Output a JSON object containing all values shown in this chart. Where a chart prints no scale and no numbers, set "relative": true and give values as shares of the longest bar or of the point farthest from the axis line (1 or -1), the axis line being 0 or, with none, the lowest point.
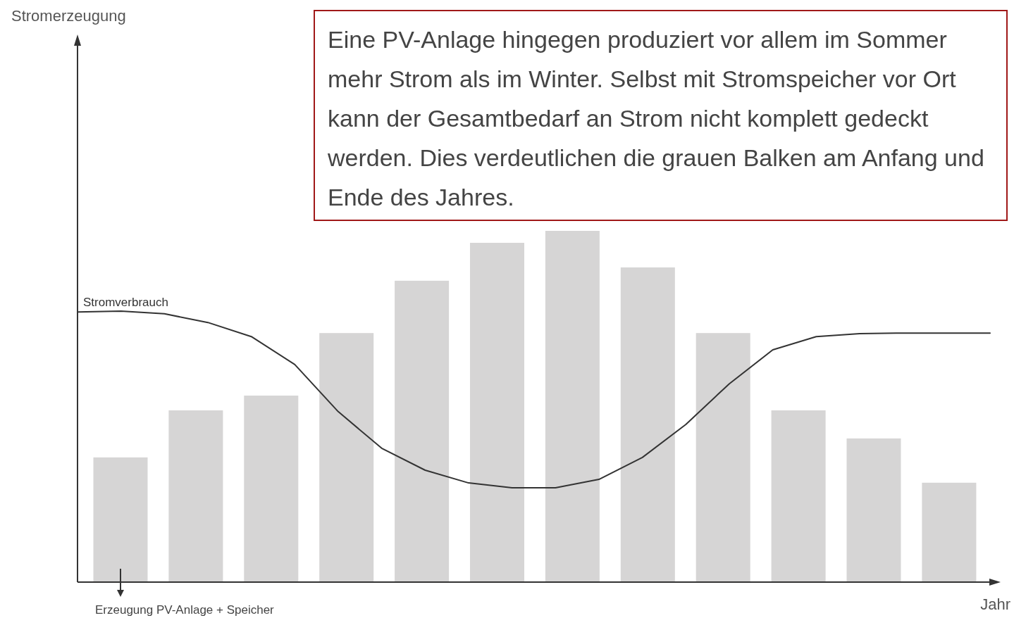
{
  "chart_data": [
    {
      "type": "bar",
      "relative": true,
      "categories": [
        null,
        null,
        null,
        null,
        null,
        null,
        null,
        null,
        null,
        null,
        null,
        null
      ],
      "series": [
        {
          "color": "#d6d5d5",
          "values": [
            0.355,
            0.489,
            0.531,
            0.709,
            0.858,
            0.966,
            1,
            0.896,
            0.709,
            0.489,
            0.409,
            0.283
          ]
        }
      ],
      "annotations": [
        "Eine PV-Anlage hingegen produziert vor allem im Sommer mehr Strom als im Winter. Selbst mit Stromspeicher vor Ort kann der Gesamtbedarf an Strom nicht komplett gedeckt werden. Dies verdeutlichen die grauen Balken am Anfang und Ende des Jahres.",
        "Erzeugung PV-Anlage + Speicher",
        "Stromerzeugung"
      ]
    },
    {
      "type": "line",
      "relative": true,
      "xlabel": "Jahr",
      "categories": [
        null,
        null,
        null,
        null,
        null,
        null,
        null,
        null,
        null,
        null,
        null,
        null,
        null,
        null,
        null,
        null,
        null,
        null,
        null,
        null,
        null,
        null
      ],
      "series": [
        {
          "name": "Stromverbrauch",
          "color": "#333333",
          "values": [
            0.997,
            1,
            0.99,
            0.958,
            0.906,
            0.803,
            0.629,
            0.494,
            0.413,
            0.366,
            0.348,
            0.348,
            0.379,
            0.46,
            0.582,
            0.732,
            0.857,
            0.906,
            0.917,
            0.919,
            0.919,
            0.919
          ]
        }
      ]
    }
  ]
}
